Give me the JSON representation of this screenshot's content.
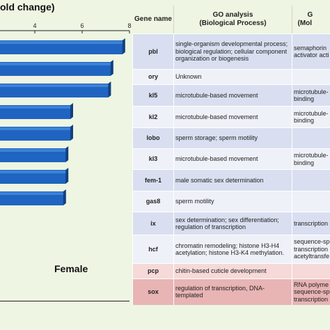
{
  "chart_data": {
    "type": "bar",
    "orientation": "horizontal",
    "title": "old change)",
    "xlim": [
      0,
      8
    ],
    "x_ticks": [
      "2",
      "4",
      "6",
      "8"
    ],
    "values": [
      7.7,
      7.2,
      7.1,
      5.5,
      5.5,
      5.3,
      5.3,
      5.2
    ],
    "bar_color": "#1f64c0",
    "group_label": "Female"
  },
  "table": {
    "headers": {
      "gene": "Gene name",
      "bp_line1": "GO analysis",
      "bp_line2": "(Biological Process)",
      "mf_line1": "G",
      "mf_line2": "(Mol"
    },
    "rows": [
      {
        "gene": "pbl",
        "bp": "single-organism developmental process; biological regulation; cellular component organization or biogenesis",
        "mf": "semaphorin\nactivator acti",
        "color": "#d9dff0"
      },
      {
        "gene": "ory",
        "bp": "Unknown",
        "mf": "",
        "color": "#eef1f8"
      },
      {
        "gene": "kl5",
        "bp": "microtubule-based movement",
        "mf": "microtubule-\nbinding",
        "color": "#d9dff0"
      },
      {
        "gene": "kl2",
        "bp": "microtubule-based movement",
        "mf": "microtubule-\nbinding",
        "color": "#eef1f8"
      },
      {
        "gene": "lobo",
        "bp": "sperm storage; sperm motility",
        "mf": "",
        "color": "#d9dff0"
      },
      {
        "gene": "kl3",
        "bp": "microtubule-based movement",
        "mf": "microtubule-\nbinding",
        "color": "#eef1f8"
      },
      {
        "gene": "fem-1",
        "bp": "male somatic sex determination",
        "mf": "",
        "color": "#d9dff0"
      },
      {
        "gene": "gas8",
        "bp": "sperm motility",
        "mf": "",
        "color": "#eef1f8"
      },
      {
        "gene": "ix",
        "bp": "sex determination; sex differentiation; regulation of transcription",
        "mf": "transcription",
        "color": "#d9dff0"
      },
      {
        "gene": "hcf",
        "bp": "chromatin remodeling; histone H3-H4 acetylation; histone H3-K4 methylation.",
        "mf": "sequence-sp\ntranscription\nacetyltransfe",
        "color": "#eef1f8"
      },
      {
        "gene": "pcp",
        "bp": "chitin-based cuticle development",
        "mf": "",
        "color": "#f6d9d9"
      },
      {
        "gene": "sox",
        "bp": "regulation of transcription, DNA-templated",
        "mf": "RNA polyme\nsequence-sp\ntranscription",
        "color": "#e8b4b4"
      }
    ]
  }
}
